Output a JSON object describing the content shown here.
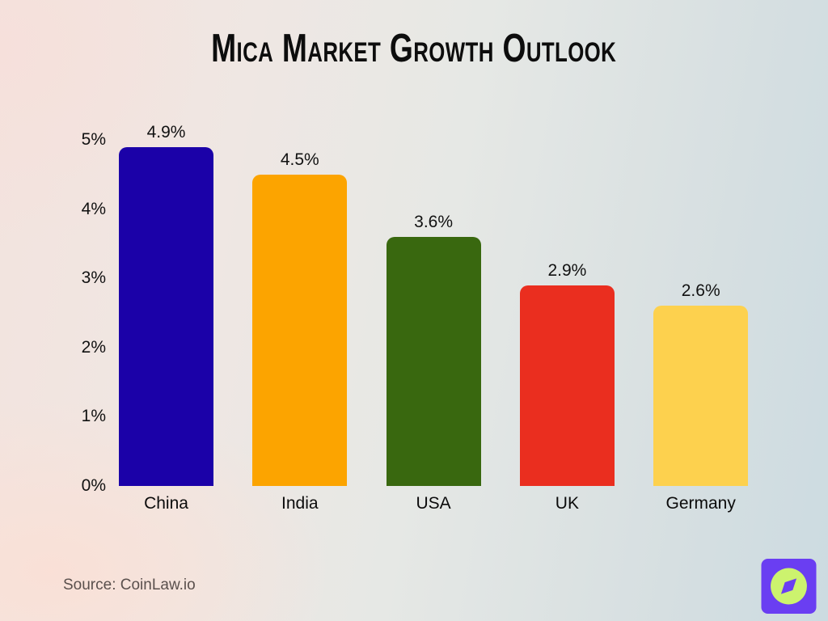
{
  "title": "Mica Market Growth Outlook",
  "source_note": "Source: CoinLaw.io",
  "brand": {
    "icon": "compass-icon",
    "bg_color": "#6a3ef2",
    "fg_color": "#ccf36e"
  },
  "chart_data": {
    "type": "bar",
    "title": "Mica Market Growth Outlook",
    "categories": [
      "China",
      "India",
      "USA",
      "UK",
      "Germany"
    ],
    "values": [
      4.9,
      4.5,
      3.6,
      2.9,
      2.6
    ],
    "value_labels": [
      "4.9%",
      "4.5%",
      "3.6%",
      "2.9%",
      "2.6%"
    ],
    "bar_colors": [
      "#1b01a8",
      "#fca400",
      "#39680f",
      "#ea2e1f",
      "#fdd14e"
    ],
    "xlabel": "",
    "ylabel": "",
    "ylim": [
      0,
      5
    ],
    "yticks": [
      {
        "value": 0,
        "label": "0%"
      },
      {
        "value": 1,
        "label": "1%"
      },
      {
        "value": 2,
        "label": "2%"
      },
      {
        "value": 3,
        "label": "3%"
      },
      {
        "value": 4,
        "label": "4%"
      },
      {
        "value": 5,
        "label": "5%"
      }
    ],
    "grid": false,
    "legend": false
  }
}
